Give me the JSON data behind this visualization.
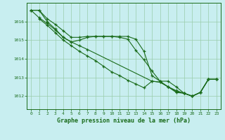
{
  "bg_color": "#c8eef0",
  "grid_color": "#99ccaa",
  "line_color": "#1a6b1a",
  "xlabel": "Graphe pression niveau de la mer (hPa)",
  "xlim": [
    -0.5,
    23.5
  ],
  "ylim": [
    1011.3,
    1017.0
  ],
  "yticks": [
    1012,
    1013,
    1014,
    1015,
    1016
  ],
  "xticks": [
    0,
    1,
    2,
    3,
    4,
    5,
    6,
    7,
    8,
    9,
    10,
    11,
    12,
    13,
    14,
    15,
    16,
    17,
    18,
    19,
    20,
    21,
    22,
    23
  ],
  "series1_x": [
    0,
    1,
    2,
    3,
    4,
    5,
    6,
    7,
    8,
    9,
    10,
    11,
    12,
    13,
    14,
    15,
    16,
    17,
    18,
    19,
    20,
    21,
    22,
    23
  ],
  "series1_y": [
    1016.6,
    1016.6,
    1016.15,
    1015.85,
    1015.5,
    1015.15,
    1015.15,
    1015.2,
    1015.2,
    1015.2,
    1015.2,
    1015.2,
    1015.2,
    1015.05,
    1014.4,
    1013.1,
    1012.8,
    1012.8,
    1012.5,
    1012.15,
    1012.0,
    1012.2,
    1012.9,
    1012.9
  ],
  "series2_x": [
    0,
    1,
    2,
    3,
    4,
    5,
    6,
    7,
    8,
    9,
    10,
    11,
    12,
    13,
    14,
    15,
    16,
    17,
    18,
    19,
    20,
    21,
    22,
    23
  ],
  "series2_y": [
    1016.6,
    1016.6,
    1016.0,
    1015.6,
    1015.15,
    1014.9,
    1015.0,
    1015.15,
    1015.2,
    1015.2,
    1015.2,
    1015.15,
    1015.05,
    1014.45,
    1013.95,
    1013.35,
    1012.8,
    1012.5,
    1012.2,
    1012.15,
    1012.0,
    1012.2,
    1012.9,
    1012.9
  ],
  "series3_x": [
    0,
    1,
    2,
    3,
    4,
    5,
    6,
    7,
    15,
    16,
    17,
    18,
    19,
    20,
    21,
    22,
    23
  ],
  "series3_y": [
    1016.6,
    1016.2,
    1015.9,
    1015.55,
    1015.15,
    1014.9,
    1014.7,
    1014.5,
    1012.8,
    1012.75,
    1012.5,
    1012.25,
    1012.15,
    1012.0,
    1012.2,
    1012.9,
    1012.9
  ],
  "series4_x": [
    1,
    2,
    3,
    4,
    5,
    6,
    7,
    8,
    9,
    10,
    11,
    12,
    13,
    14,
    15,
    16,
    17,
    18,
    19,
    20,
    21,
    22,
    23
  ],
  "series4_y": [
    1016.15,
    1015.8,
    1015.4,
    1015.0,
    1014.7,
    1014.4,
    1014.15,
    1013.9,
    1013.6,
    1013.3,
    1013.1,
    1012.85,
    1012.65,
    1012.45,
    1012.8,
    1012.75,
    1012.5,
    1012.3,
    1012.15,
    1012.0,
    1012.2,
    1012.9,
    1012.9
  ]
}
